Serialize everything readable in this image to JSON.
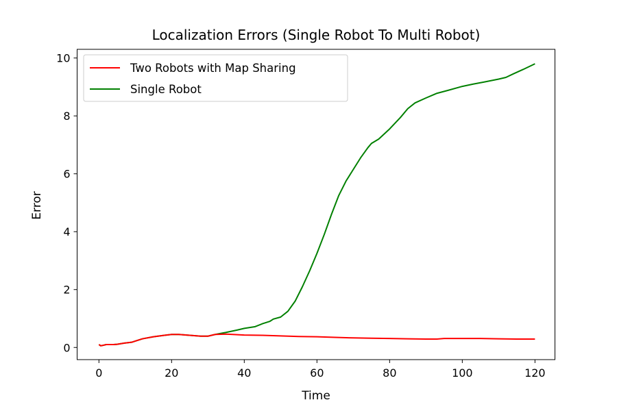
{
  "chart_data": {
    "type": "line",
    "title": "Localization Errors (Single Robot To Multi Robot)",
    "xlabel": "Time",
    "ylabel": "Error",
    "xlim": [
      -6,
      125.5
    ],
    "ylim": [
      -0.42,
      10.3
    ],
    "xticks": [
      0,
      20,
      40,
      60,
      80,
      100,
      120
    ],
    "yticks": [
      0,
      2,
      4,
      6,
      8,
      10
    ],
    "xtick_labels": [
      "0",
      "20",
      "40",
      "60",
      "80",
      "100",
      "120"
    ],
    "ytick_labels": [
      "0",
      "2",
      "4",
      "6",
      "8",
      "10"
    ],
    "grid": false,
    "legend_position": "top-left",
    "series": [
      {
        "name": "Two Robots with Map Sharing",
        "color": "#ff0000",
        "points": [
          [
            0,
            0.1
          ],
          [
            0.5,
            0.06
          ],
          [
            1,
            0.07
          ],
          [
            2,
            0.1
          ],
          [
            4,
            0.1
          ],
          [
            5,
            0.11
          ],
          [
            7,
            0.15
          ],
          [
            9,
            0.18
          ],
          [
            10,
            0.22
          ],
          [
            12,
            0.3
          ],
          [
            15,
            0.37
          ],
          [
            18,
            0.42
          ],
          [
            20,
            0.45
          ],
          [
            22,
            0.45
          ],
          [
            25,
            0.42
          ],
          [
            28,
            0.39
          ],
          [
            30,
            0.39
          ],
          [
            32,
            0.45
          ],
          [
            35,
            0.46
          ],
          [
            40,
            0.43
          ],
          [
            45,
            0.42
          ],
          [
            50,
            0.4
          ],
          [
            55,
            0.38
          ],
          [
            60,
            0.37
          ],
          [
            65,
            0.35
          ],
          [
            70,
            0.33
          ],
          [
            75,
            0.32
          ],
          [
            80,
            0.31
          ],
          [
            85,
            0.3
          ],
          [
            90,
            0.29
          ],
          [
            93,
            0.29
          ],
          [
            95,
            0.31
          ],
          [
            100,
            0.31
          ],
          [
            105,
            0.31
          ],
          [
            110,
            0.3
          ],
          [
            115,
            0.29
          ],
          [
            120,
            0.29
          ]
        ]
      },
      {
        "name": "Single Robot",
        "color": "#008000",
        "points": [
          [
            0,
            0.1
          ],
          [
            0.5,
            0.06
          ],
          [
            1,
            0.07
          ],
          [
            2,
            0.1
          ],
          [
            4,
            0.1
          ],
          [
            5,
            0.11
          ],
          [
            7,
            0.15
          ],
          [
            9,
            0.18
          ],
          [
            10,
            0.22
          ],
          [
            12,
            0.3
          ],
          [
            15,
            0.37
          ],
          [
            18,
            0.42
          ],
          [
            20,
            0.45
          ],
          [
            22,
            0.45
          ],
          [
            25,
            0.42
          ],
          [
            28,
            0.39
          ],
          [
            30,
            0.39
          ],
          [
            32,
            0.45
          ],
          [
            35,
            0.52
          ],
          [
            38,
            0.6
          ],
          [
            40,
            0.66
          ],
          [
            43,
            0.72
          ],
          [
            45,
            0.82
          ],
          [
            47,
            0.9
          ],
          [
            48,
            0.98
          ],
          [
            50,
            1.05
          ],
          [
            52,
            1.25
          ],
          [
            54,
            1.6
          ],
          [
            56,
            2.1
          ],
          [
            58,
            2.65
          ],
          [
            60,
            3.25
          ],
          [
            62,
            3.9
          ],
          [
            64,
            4.6
          ],
          [
            66,
            5.25
          ],
          [
            68,
            5.75
          ],
          [
            70,
            6.15
          ],
          [
            72,
            6.55
          ],
          [
            74,
            6.9
          ],
          [
            75,
            7.05
          ],
          [
            77,
            7.2
          ],
          [
            80,
            7.55
          ],
          [
            83,
            7.95
          ],
          [
            85,
            8.25
          ],
          [
            87,
            8.45
          ],
          [
            90,
            8.62
          ],
          [
            93,
            8.78
          ],
          [
            96,
            8.88
          ],
          [
            100,
            9.02
          ],
          [
            103,
            9.1
          ],
          [
            106,
            9.17
          ],
          [
            110,
            9.27
          ],
          [
            112,
            9.33
          ],
          [
            114,
            9.45
          ],
          [
            117,
            9.62
          ],
          [
            120,
            9.8
          ]
        ]
      }
    ]
  }
}
